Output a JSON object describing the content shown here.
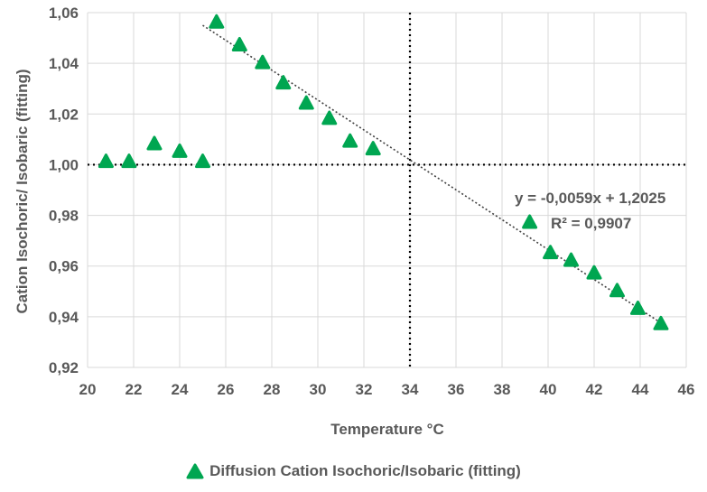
{
  "chart_data": {
    "type": "scatter",
    "title": "",
    "xlabel": "Temperature °C",
    "ylabel": "Cation Isochoric/ Isobaric (fitting)",
    "xlim": [
      20,
      46
    ],
    "ylim": [
      0.92,
      1.06
    ],
    "x_ticks": [
      "20",
      "22",
      "24",
      "26",
      "28",
      "30",
      "32",
      "34",
      "36",
      "38",
      "40",
      "42",
      "44",
      "46"
    ],
    "y_ticks": [
      "0,92",
      "0,94",
      "0,96",
      "0,98",
      "1,00",
      "1,02",
      "1,04",
      "1,06"
    ],
    "grid": "both",
    "legend_position": "bottom",
    "series": [
      {
        "name": "Diffusion Cation Isochoric/Isobaric (fitting)",
        "color": "#00a651",
        "marker": "triangle",
        "points": [
          {
            "x": 20.8,
            "y": 1.001
          },
          {
            "x": 21.8,
            "y": 1.001
          },
          {
            "x": 22.9,
            "y": 1.008
          },
          {
            "x": 24.0,
            "y": 1.005
          },
          {
            "x": 25.0,
            "y": 1.001
          },
          {
            "x": 25.6,
            "y": 1.056
          },
          {
            "x": 26.6,
            "y": 1.047
          },
          {
            "x": 27.6,
            "y": 1.04
          },
          {
            "x": 28.5,
            "y": 1.032
          },
          {
            "x": 29.5,
            "y": 1.024
          },
          {
            "x": 30.5,
            "y": 1.018
          },
          {
            "x": 31.4,
            "y": 1.009
          },
          {
            "x": 32.4,
            "y": 1.006
          },
          {
            "x": 39.2,
            "y": 0.977
          },
          {
            "x": 40.1,
            "y": 0.965
          },
          {
            "x": 41.0,
            "y": 0.962
          },
          {
            "x": 42.0,
            "y": 0.957
          },
          {
            "x": 43.0,
            "y": 0.95
          },
          {
            "x": 43.9,
            "y": 0.943
          },
          {
            "x": 44.9,
            "y": 0.937
          }
        ]
      }
    ],
    "trendline": {
      "x_range": [
        25.0,
        45.0
      ],
      "slope": -0.0059,
      "intercept": 1.2025,
      "style": "dotted",
      "equation": "y = -0,0059x + 1,2025",
      "r_squared": "R² = 0,9907"
    },
    "reference_lines": {
      "horizontal_y": 1.0,
      "vertical_x": 34.0,
      "style": "dotted",
      "color": "#000000"
    }
  }
}
